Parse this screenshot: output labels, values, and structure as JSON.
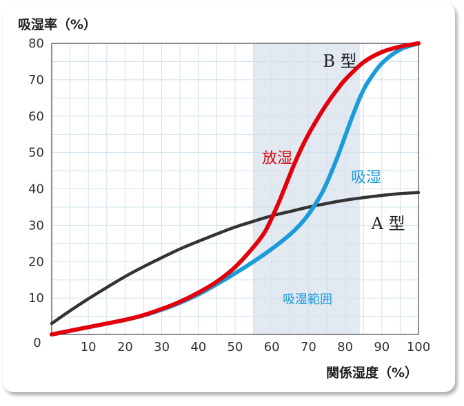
{
  "chart_data": {
    "type": "line",
    "ylabel": "吸湿率（%）",
    "xlabel": "関係湿度（%）",
    "xlim": [
      0,
      100
    ],
    "ylim": [
      0,
      80
    ],
    "x_ticks": [
      "0",
      "10",
      "20",
      "30",
      "40",
      "50",
      "60",
      "70",
      "80",
      "90",
      "100"
    ],
    "y_ticks": [
      "10",
      "20",
      "30",
      "40",
      "50",
      "60",
      "70",
      "80"
    ],
    "grid": true,
    "shaded_band": {
      "x_range": [
        55,
        84
      ],
      "label": "吸湿範囲",
      "color": "#e3e9f0"
    },
    "series": [
      {
        "name": "A 型",
        "color": "#333333",
        "x": [
          0,
          5,
          10,
          15,
          20,
          25,
          30,
          35,
          40,
          45,
          50,
          55,
          60,
          65,
          70,
          75,
          80,
          85,
          90,
          95,
          100
        ],
        "y": [
          3,
          6.5,
          9.8,
          12.9,
          15.9,
          18.6,
          21.1,
          23.5,
          25.6,
          27.6,
          29.5,
          31.1,
          32.6,
          33.8,
          35,
          36,
          36.9,
          37.6,
          38.2,
          38.7,
          39
        ]
      },
      {
        "name": "放湿",
        "color": "#e3000b",
        "x": [
          0,
          5,
          10,
          15,
          20,
          25,
          30,
          35,
          40,
          45,
          50,
          55,
          58,
          60,
          62,
          64,
          66,
          68,
          70,
          72,
          74,
          76,
          78,
          80,
          85,
          90,
          95,
          100
        ],
        "y": [
          0,
          1,
          2,
          3,
          4,
          5.3,
          7,
          9,
          11.5,
          14.5,
          18.5,
          24,
          28,
          32,
          36.5,
          41.5,
          46.5,
          51,
          55,
          58.5,
          61.8,
          64.8,
          67.5,
          70,
          74.8,
          77.6,
          79.1,
          80
        ]
      },
      {
        "name": "吸湿",
        "color": "#1a9bdb",
        "x": [
          0,
          5,
          10,
          15,
          20,
          25,
          30,
          35,
          40,
          45,
          50,
          55,
          60,
          65,
          68,
          70,
          72,
          74,
          76,
          78,
          80,
          82,
          84,
          86,
          90,
          95,
          100
        ],
        "y": [
          0,
          1,
          2,
          3,
          4,
          5.2,
          6.8,
          8.7,
          11,
          13.8,
          16.8,
          20,
          23.5,
          27.5,
          30.5,
          33,
          36,
          39.5,
          44,
          49,
          54.5,
          60,
          65,
          69,
          74.5,
          78.3,
          80
        ]
      }
    ],
    "annotations": [
      {
        "text": "B 型",
        "color": "#222222"
      },
      {
        "text": "放湿",
        "color": "#e3000b"
      },
      {
        "text": "吸湿",
        "color": "#1a9bdb"
      },
      {
        "text": "A 型",
        "color": "#222222"
      },
      {
        "text": "吸湿範囲",
        "color": "#1a9bdb"
      }
    ]
  }
}
